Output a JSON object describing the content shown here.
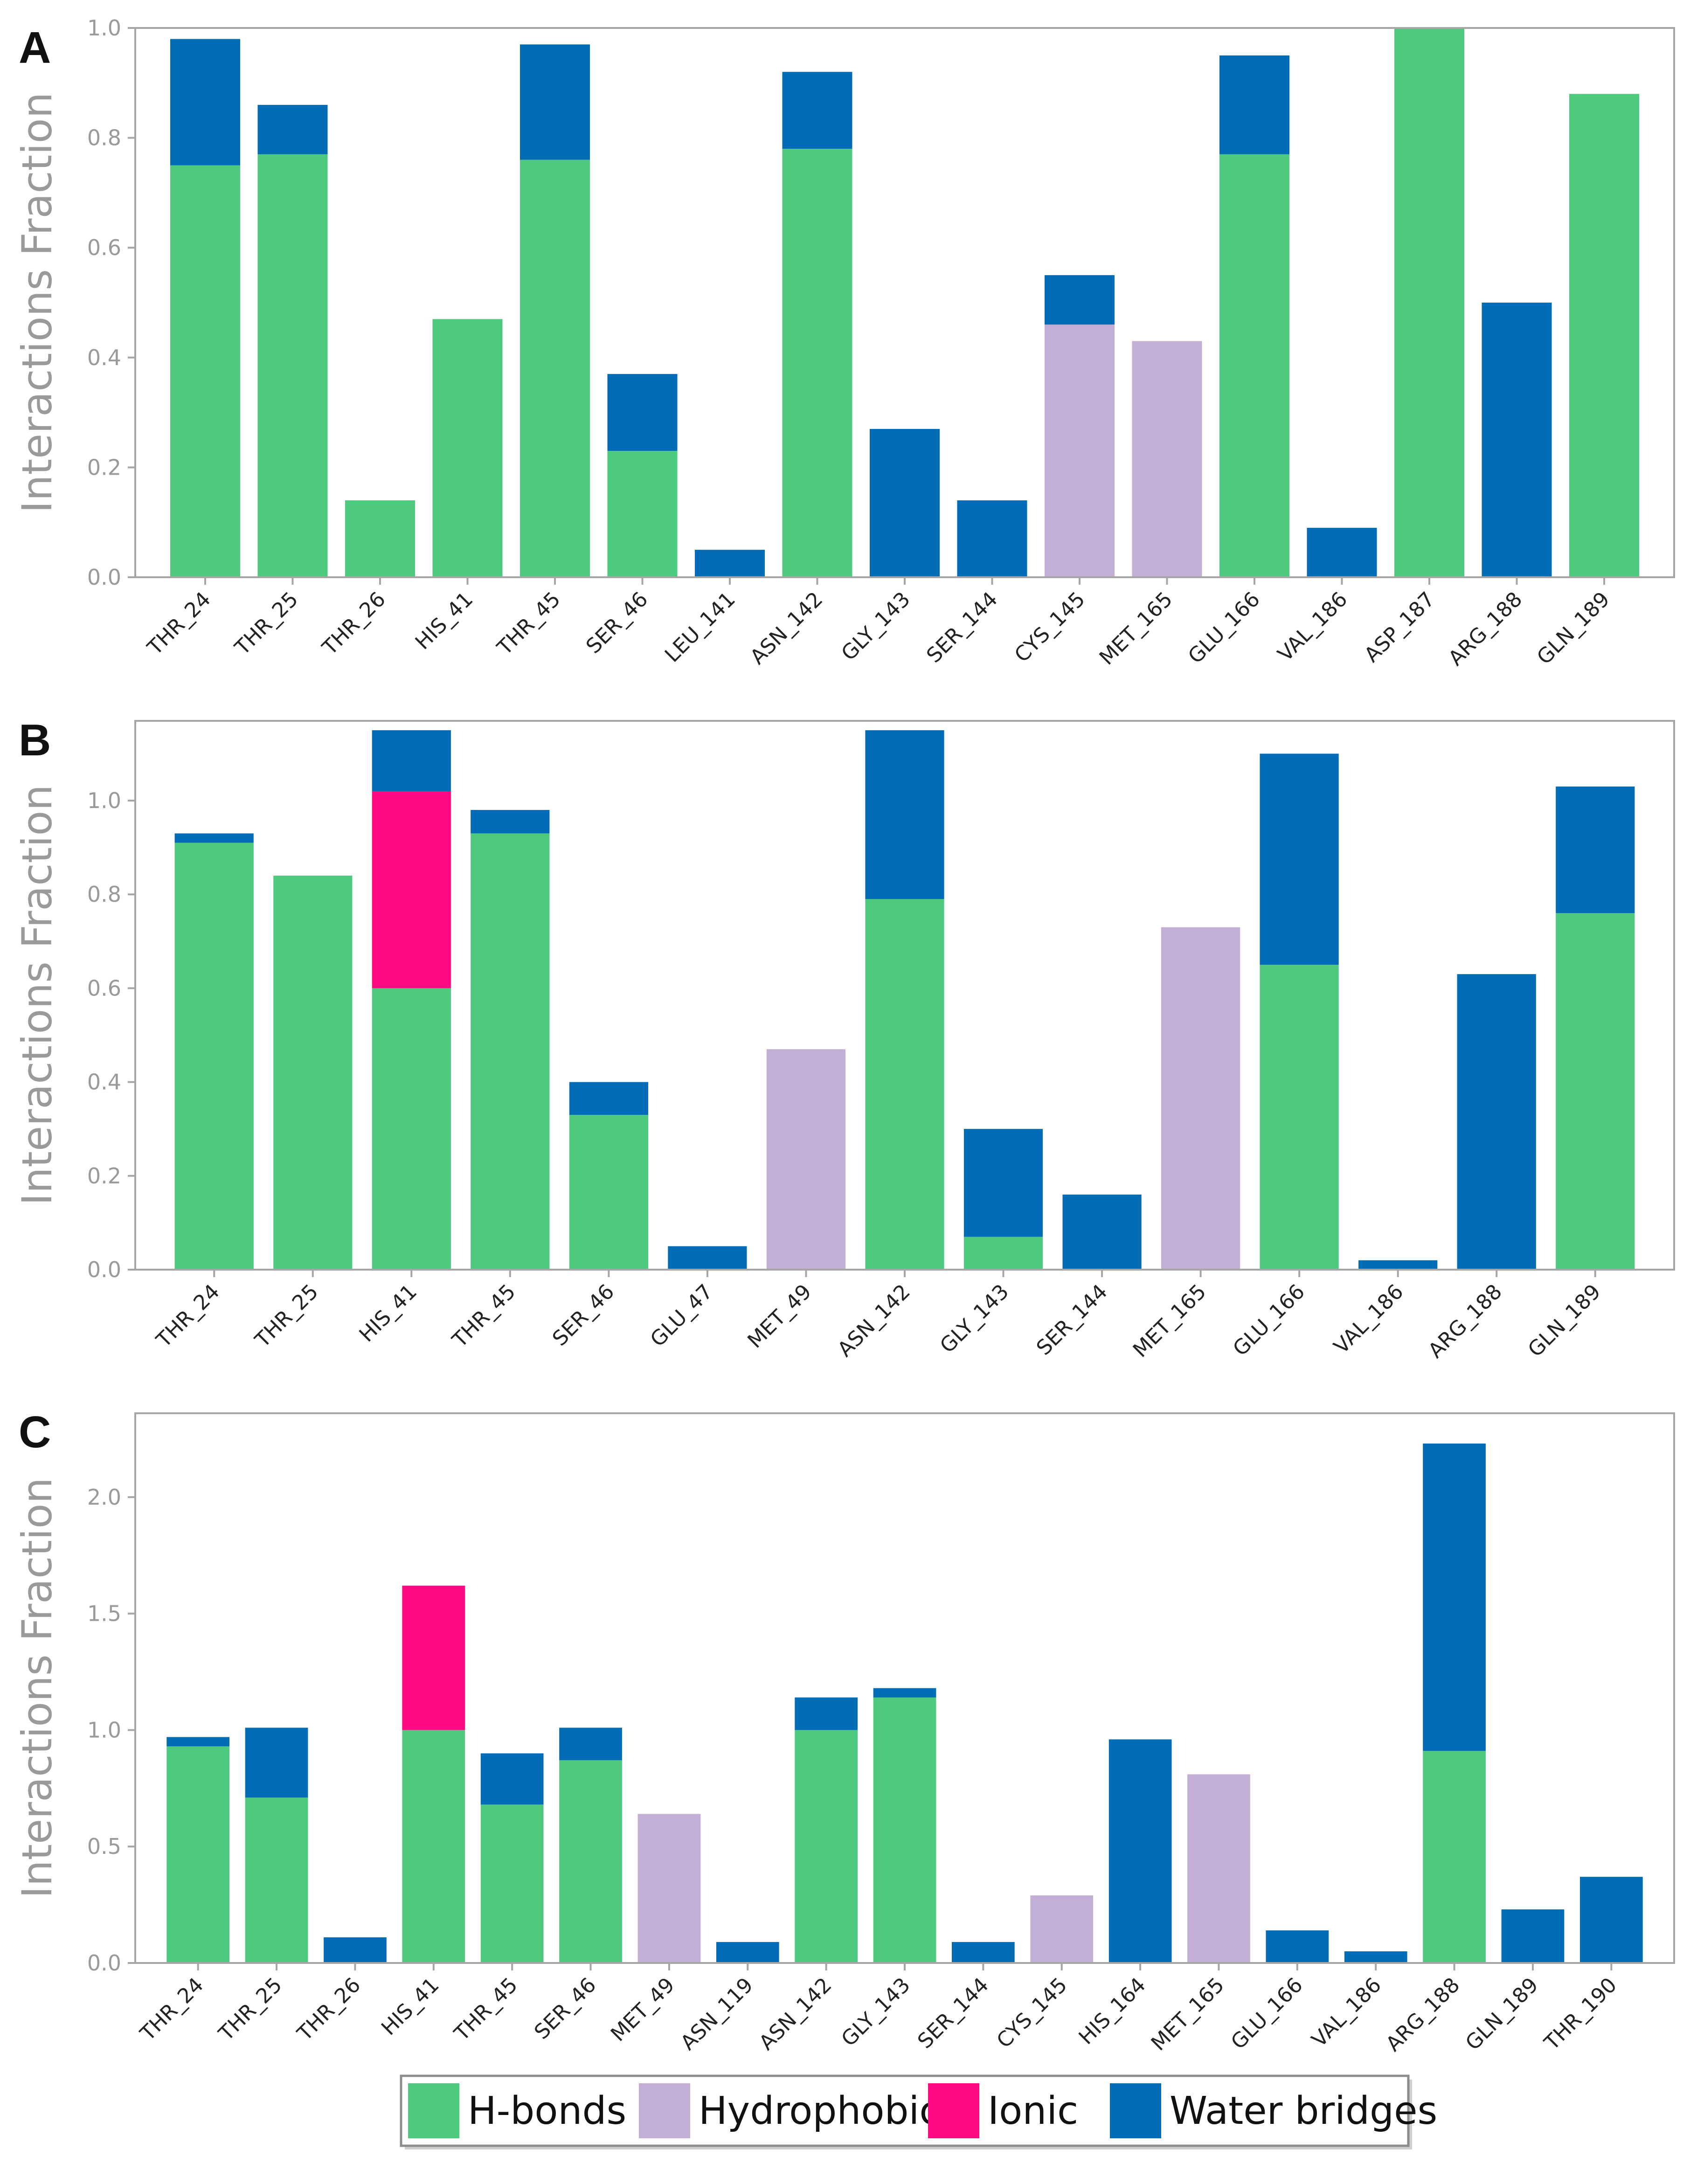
{
  "colors": {
    "H-bonds": "#4dca7d",
    "Hydrophobic": "#c3aed6",
    "Ionic": "#ff0a83",
    "Water bridges": "#026cb6"
  },
  "legend": {
    "entries": [
      "H-bonds",
      "Hydrophobic",
      "Ionic",
      "Water bridges"
    ]
  },
  "chart_data": [
    {
      "type": "bar",
      "stacked": true,
      "panel": "A",
      "ylabel": "Interactions Fraction",
      "ylim": [
        0,
        1.0
      ],
      "yticks": [
        0.0,
        0.2,
        0.4,
        0.6,
        0.8,
        1.0
      ],
      "ytick_labels": [
        "0.0",
        "0.2",
        "0.4",
        "0.6",
        "0.8",
        "1.0"
      ],
      "categories": [
        "THR_24",
        "THR_25",
        "THR_26",
        "HIS_41",
        "THR_45",
        "SER_46",
        "LEU_141",
        "ASN_142",
        "GLY_143",
        "SER_144",
        "CYS_145",
        "MET_165",
        "GLU_166",
        "VAL_186",
        "ASP_187",
        "ARG_188",
        "GLN_189"
      ],
      "series": [
        {
          "name": "H-bonds",
          "values": [
            0.75,
            0.77,
            0.14,
            0.47,
            0.76,
            0.23,
            0,
            0.78,
            0,
            0,
            0,
            0,
            0.77,
            0,
            1.0,
            0,
            0.88
          ]
        },
        {
          "name": "Hydrophobic",
          "values": [
            0,
            0,
            0,
            0,
            0,
            0,
            0,
            0,
            0,
            0,
            0.46,
            0.43,
            0,
            0,
            0,
            0,
            0
          ]
        },
        {
          "name": "Ionic",
          "values": [
            0,
            0,
            0,
            0,
            0,
            0,
            0,
            0,
            0,
            0,
            0,
            0,
            0,
            0,
            0,
            0,
            0
          ]
        },
        {
          "name": "Water bridges",
          "values": [
            0.23,
            0.09,
            0,
            0,
            0.21,
            0.14,
            0.05,
            0.14,
            0.27,
            0.14,
            0.09,
            0,
            0.18,
            0.09,
            0,
            0.5,
            0
          ]
        }
      ]
    },
    {
      "type": "bar",
      "stacked": true,
      "panel": "B",
      "ylabel": "Interactions Fraction",
      "ylim": [
        0,
        1.17
      ],
      "yticks": [
        0.0,
        0.2,
        0.4,
        0.6,
        0.8,
        1.0
      ],
      "ytick_labels": [
        "0.0",
        "0.2",
        "0.4",
        "0.6",
        "0.8",
        "1.0"
      ],
      "categories": [
        "THR_24",
        "THR_25",
        "HIS_41",
        "THR_45",
        "SER_46",
        "GLU_47",
        "MET_49",
        "ASN_142",
        "GLY_143",
        "SER_144",
        "MET_165",
        "GLU_166",
        "VAL_186",
        "ARG_188",
        "GLN_189"
      ],
      "series": [
        {
          "name": "H-bonds",
          "values": [
            0.91,
            0.84,
            0.6,
            0.93,
            0.33,
            0,
            0,
            0.79,
            0.07,
            0,
            0,
            0.65,
            0,
            0,
            0.76
          ]
        },
        {
          "name": "Hydrophobic",
          "values": [
            0,
            0,
            0,
            0,
            0,
            0,
            0.47,
            0,
            0,
            0,
            0.73,
            0,
            0,
            0,
            0
          ]
        },
        {
          "name": "Ionic",
          "values": [
            0,
            0,
            0.42,
            0,
            0,
            0,
            0,
            0,
            0,
            0,
            0,
            0,
            0,
            0,
            0
          ]
        },
        {
          "name": "Water bridges",
          "values": [
            0.02,
            0,
            0.13,
            0.05,
            0.07,
            0.05,
            0,
            0.36,
            0.23,
            0.16,
            0,
            0.45,
            0.02,
            0.63,
            0.27
          ]
        }
      ]
    },
    {
      "type": "bar",
      "stacked": true,
      "panel": "C",
      "ylabel": "Interactions Fraction",
      "ylim": [
        0,
        2.36
      ],
      "yticks": [
        0.0,
        0.5,
        1.0,
        1.5,
        2.0
      ],
      "ytick_labels": [
        "0.0",
        "0.5",
        "1.0",
        "1.5",
        "2.0"
      ],
      "categories": [
        "THR_24",
        "THR_25",
        "THR_26",
        "HIS_41",
        "THR_45",
        "SER_46",
        "MET_49",
        "ASN_119",
        "ASN_142",
        "GLY_143",
        "SER_144",
        "CYS_145",
        "HIS_164",
        "MET_165",
        "GLU_166",
        "VAL_186",
        "ARG_188",
        "GLN_189",
        "THR_190"
      ],
      "series": [
        {
          "name": "H-bonds",
          "values": [
            0.93,
            0.71,
            0,
            1.0,
            0.68,
            0.87,
            0,
            0,
            1.0,
            1.14,
            0,
            0,
            0,
            0,
            0,
            0,
            0.91,
            0,
            0
          ]
        },
        {
          "name": "Hydrophobic",
          "values": [
            0,
            0,
            0,
            0,
            0,
            0,
            0.64,
            0,
            0,
            0,
            0,
            0.29,
            0,
            0.81,
            0,
            0,
            0,
            0,
            0
          ]
        },
        {
          "name": "Ionic",
          "values": [
            0,
            0,
            0,
            0.62,
            0,
            0,
            0,
            0,
            0,
            0,
            0,
            0,
            0,
            0,
            0,
            0,
            0,
            0,
            0
          ]
        },
        {
          "name": "Water bridges",
          "values": [
            0.04,
            0.3,
            0.11,
            0,
            0.22,
            0.14,
            0,
            0.09,
            0.14,
            0.04,
            0.09,
            0,
            0.96,
            0,
            0.14,
            0.05,
            1.32,
            0.23,
            0.37
          ]
        }
      ]
    }
  ]
}
